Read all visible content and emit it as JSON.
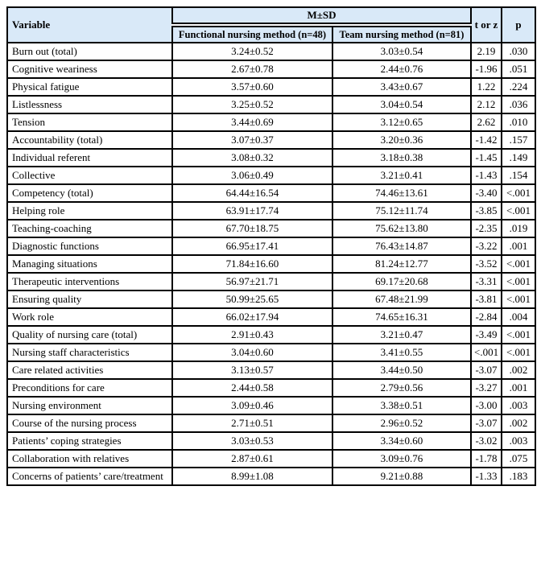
{
  "colors": {
    "header_bg": "#d9e9f8",
    "border": "#000000",
    "text": "#000000"
  },
  "table": {
    "columns": {
      "variable": "Variable",
      "group_header": "M±SD",
      "sub_columns": [
        "Functional nursing method (n=48)",
        "Team nursing method (n=81)"
      ],
      "stat": "t or z",
      "p": "p"
    },
    "rows": [
      {
        "variable": "Burn out (total)",
        "functional": "3.24±0.52",
        "team": "3.03±0.54",
        "t_or_z": "2.19",
        "p": ".030"
      },
      {
        "variable": "Cognitive weariness",
        "functional": "2.67±0.78",
        "team": "2.44±0.76",
        "t_or_z": "-1.96",
        "p": ".051"
      },
      {
        "variable": "Physical fatigue",
        "functional": "3.57±0.60",
        "team": "3.43±0.67",
        "t_or_z": "1.22",
        "p": ".224"
      },
      {
        "variable": "Listlessness",
        "functional": "3.25±0.52",
        "team": "3.04±0.54",
        "t_or_z": "2.12",
        "p": ".036"
      },
      {
        "variable": "Tension",
        "functional": "3.44±0.69",
        "team": "3.12±0.65",
        "t_or_z": "2.62",
        "p": ".010"
      },
      {
        "variable": "Accountability (total)",
        "functional": "3.07±0.37",
        "team": "3.20±0.36",
        "t_or_z": "-1.42",
        "p": ".157"
      },
      {
        "variable": "Individual referent",
        "functional": "3.08±0.32",
        "team": "3.18±0.38",
        "t_or_z": "-1.45",
        "p": ".149"
      },
      {
        "variable": "Collective",
        "functional": "3.06±0.49",
        "team": "3.21±0.41",
        "t_or_z": "-1.43",
        "p": ".154"
      },
      {
        "variable": "Competency (total)",
        "functional": "64.44±16.54",
        "team": "74.46±13.61",
        "t_or_z": "-3.40",
        "p": "<.001"
      },
      {
        "variable": "Helping role",
        "functional": "63.91±17.74",
        "team": "75.12±11.74",
        "t_or_z": "-3.85",
        "p": "<.001"
      },
      {
        "variable": "Teaching-coaching",
        "functional": "67.70±18.75",
        "team": "75.62±13.80",
        "t_or_z": "-2.35",
        "p": ".019"
      },
      {
        "variable": "Diagnostic functions",
        "functional": "66.95±17.41",
        "team": "76.43±14.87",
        "t_or_z": "-3.22",
        "p": ".001"
      },
      {
        "variable": "Managing situations",
        "functional": "71.84±16.60",
        "team": "81.24±12.77",
        "t_or_z": "-3.52",
        "p": "<.001"
      },
      {
        "variable": "Therapeutic interventions",
        "functional": "56.97±21.71",
        "team": "69.17±20.68",
        "t_or_z": "-3.31",
        "p": "<.001"
      },
      {
        "variable": "Ensuring quality",
        "functional": "50.99±25.65",
        "team": "67.48±21.99",
        "t_or_z": "-3.81",
        "p": "<.001"
      },
      {
        "variable": "Work role",
        "functional": "66.02±17.94",
        "team": "74.65±16.31",
        "t_or_z": "-2.84",
        "p": ".004"
      },
      {
        "variable": "Quality of nursing care (total)",
        "functional": "2.91±0.43",
        "team": "3.21±0.47",
        "t_or_z": "-3.49",
        "p": "<.001"
      },
      {
        "variable": "Nursing staff characteristics",
        "functional": "3.04±0.60",
        "team": "3.41±0.55",
        "t_or_z": "<.001",
        "p": "<.001"
      },
      {
        "variable": "Care related activities",
        "functional": "3.13±0.57",
        "team": "3.44±0.50",
        "t_or_z": "-3.07",
        "p": ".002"
      },
      {
        "variable": "Preconditions for care",
        "functional": "2.44±0.58",
        "team": "2.79±0.56",
        "t_or_z": "-3.27",
        "p": ".001"
      },
      {
        "variable": "Nursing environment",
        "functional": "3.09±0.46",
        "team": "3.38±0.51",
        "t_or_z": "-3.00",
        "p": ".003"
      },
      {
        "variable": "Course of the nursing process",
        "functional": "2.71±0.51",
        "team": "2.96±0.52",
        "t_or_z": "-3.07",
        "p": ".002"
      },
      {
        "variable": "Patients’ coping strategies",
        "functional": "3.03±0.53",
        "team": "3.34±0.60",
        "t_or_z": "-3.02",
        "p": ".003"
      },
      {
        "variable": "Collaboration with relatives",
        "functional": "2.87±0.61",
        "team": "3.09±0.76",
        "t_or_z": "-1.78",
        "p": ".075"
      },
      {
        "variable": "Concerns of patients’ care/treatment",
        "functional": "8.99±1.08",
        "team": "9.21±0.88",
        "t_or_z": "-1.33",
        "p": ".183"
      }
    ]
  }
}
